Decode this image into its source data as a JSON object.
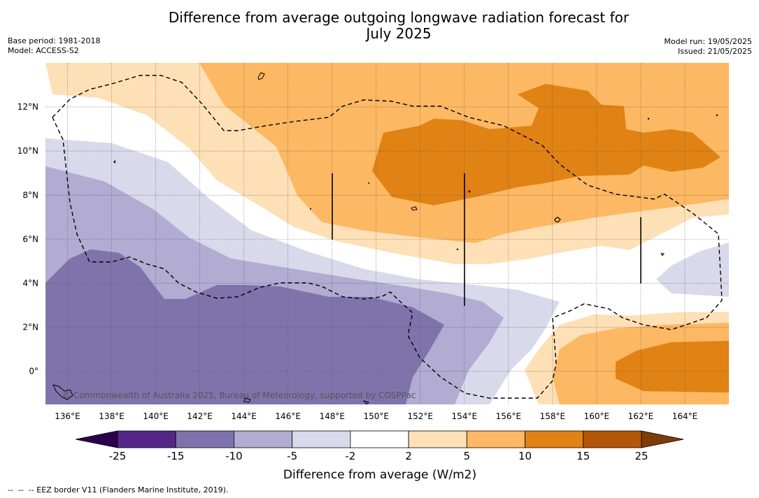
{
  "header": {
    "title_line1": "Difference from average outgoing longwave radiation forecast for",
    "title_line2": "July 2025",
    "base_period": "Base period: 1981-2018",
    "model": "Model: ACCESS-S2",
    "model_run": "Model run: 19/05/2025",
    "issued": "Issued: 21/05/2025"
  },
  "map": {
    "lon_range": [
      135,
      166
    ],
    "lat_range": [
      -1.5,
      14
    ],
    "x_ticks": [
      "136°E",
      "138°E",
      "140°E",
      "142°E",
      "144°E",
      "146°E",
      "148°E",
      "150°E",
      "152°E",
      "154°E",
      "156°E",
      "158°E",
      "160°E",
      "162°E",
      "164°E"
    ],
    "x_tick_values": [
      136,
      138,
      140,
      142,
      144,
      146,
      148,
      150,
      152,
      154,
      156,
      158,
      160,
      162,
      164
    ],
    "y_ticks": [
      "0°",
      "2°N",
      "4°N",
      "6°N",
      "8°N",
      "10°N",
      "12°N"
    ],
    "y_tick_values": [
      0,
      2,
      4,
      6,
      8,
      10,
      12
    ],
    "grid": true,
    "copyright": "© Commonwealth of Australia 2025, Bureau of Meteorology, supported by COSPPac",
    "eez_border_style": "dashed"
  },
  "colorbar": {
    "title": "Difference from average (W/m2)",
    "labels": [
      "-25",
      "-15",
      "-10",
      "-5",
      "-2",
      "2",
      "5",
      "10",
      "15",
      "25"
    ],
    "boundaries": [
      -25,
      -15,
      -10,
      -5,
      -2,
      2,
      5,
      10,
      15,
      25
    ],
    "colors": [
      "#542788",
      "#8073ac",
      "#b2abd2",
      "#d8daeb",
      "#ffffff",
      "#fee0b6",
      "#fdb863",
      "#e08214",
      "#b35806"
    ],
    "under_color": "#2d004b",
    "over_color": "#7f3b08",
    "extend": "both"
  },
  "footnote": "--  --  -- EEZ border V11 (Flanders Marine Institute, 2019)."
}
